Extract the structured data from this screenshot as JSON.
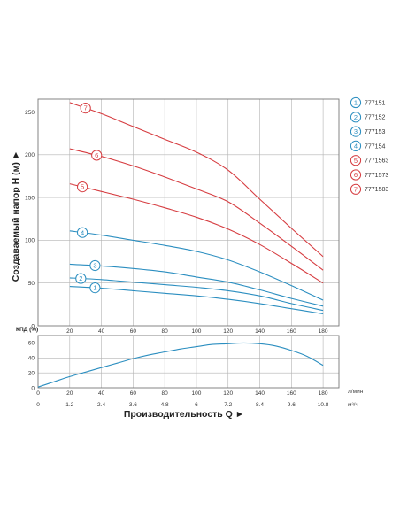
{
  "colors": {
    "red": "#d63c40",
    "teal": "#2b8ec0",
    "grid": "#b3b3b3",
    "frame": "#777777"
  },
  "chart_data": [
    {
      "type": "line",
      "title": "",
      "xlabel": "",
      "ylabel": "Создаваемый напор H (м) ►",
      "xlim": [
        0,
        190
      ],
      "ylim": [
        0,
        265
      ],
      "x_ticks": [
        "0",
        "20",
        "40",
        "60",
        "80",
        "100",
        "120",
        "140",
        "160",
        "180"
      ],
      "x_tick_values": [
        0,
        20,
        40,
        60,
        80,
        100,
        120,
        140,
        160,
        180
      ],
      "y_ticks": [
        "0",
        "50",
        "100",
        "150",
        "200",
        "250"
      ],
      "y_tick_values": [
        0,
        50,
        100,
        150,
        200,
        250
      ],
      "grid": true,
      "legend_position": "right",
      "series": [
        {
          "name": "777151",
          "marker": "1",
          "color": "teal",
          "x": [
            20,
            40,
            60,
            80,
            100,
            120,
            140,
            160,
            180
          ],
          "y": [
            46,
            44,
            41,
            38,
            35,
            31,
            26,
            20,
            14
          ],
          "label_x": 36
        },
        {
          "name": "777152",
          "marker": "2",
          "color": "teal",
          "x": [
            20,
            40,
            60,
            80,
            100,
            120,
            140,
            160,
            180
          ],
          "y": [
            56,
            54,
            51,
            48,
            45,
            41,
            35,
            26,
            18
          ],
          "label_x": 27
        },
        {
          "name": "777153",
          "marker": "3",
          "color": "teal",
          "x": [
            20,
            40,
            60,
            80,
            100,
            120,
            140,
            160,
            180
          ],
          "y": [
            72,
            70,
            67,
            63,
            57,
            51,
            42,
            32,
            23
          ],
          "label_x": 36
        },
        {
          "name": "777154",
          "marker": "4",
          "color": "teal",
          "x": [
            20,
            40,
            60,
            80,
            100,
            120,
            140,
            160,
            180
          ],
          "y": [
            111,
            106,
            100,
            94,
            87,
            77,
            63,
            47,
            30
          ],
          "label_x": 28
        },
        {
          "name": "7771563",
          "marker": "5",
          "color": "red",
          "x": [
            20,
            40,
            60,
            80,
            100,
            120,
            140,
            160,
            180
          ],
          "y": [
            166,
            157,
            148,
            138,
            127,
            113,
            95,
            73,
            50
          ],
          "label_x": 28
        },
        {
          "name": "7771573",
          "marker": "6",
          "color": "red",
          "x": [
            20,
            40,
            60,
            80,
            100,
            120,
            140,
            160,
            180
          ],
          "y": [
            207,
            198,
            187,
            174,
            160,
            145,
            120,
            93,
            65
          ],
          "label_x": 37
        },
        {
          "name": "7771583",
          "marker": "7",
          "color": "red",
          "x": [
            20,
            40,
            60,
            80,
            100,
            120,
            140,
            160,
            180
          ],
          "y": [
            261,
            248,
            233,
            218,
            203,
            182,
            148,
            114,
            81
          ],
          "label_x": 30
        }
      ]
    },
    {
      "type": "line",
      "title": "",
      "xlabel": "Производительность Q ►",
      "ylabel": "КПД (%)",
      "xlim": [
        0,
        190
      ],
      "ylim": [
        0,
        70
      ],
      "x_ticks": [
        "0",
        "20",
        "40",
        "60",
        "80",
        "100",
        "120",
        "140",
        "160",
        "180"
      ],
      "x_tick_values": [
        0,
        20,
        40,
        60,
        80,
        100,
        120,
        140,
        160,
        180
      ],
      "x_unit": "л/мин",
      "x2_ticks": [
        "0",
        "1.2",
        "2.4",
        "3.6",
        "4.8",
        "6",
        "7.2",
        "8.4",
        "9.6",
        "10.8"
      ],
      "x2_unit": "м³/ч",
      "y_ticks": [
        "0",
        "20",
        "40",
        "60"
      ],
      "y_tick_values": [
        0,
        20,
        40,
        60
      ],
      "grid": true,
      "series": [
        {
          "color": "teal",
          "x": [
            0,
            10,
            20,
            30,
            40,
            50,
            60,
            70,
            80,
            90,
            100,
            110,
            120,
            130,
            140,
            150,
            160,
            170,
            180
          ],
          "y": [
            1,
            8,
            15,
            21,
            27,
            33,
            39,
            44,
            48,
            52,
            55,
            58,
            59,
            60,
            59,
            56,
            50,
            42,
            30
          ]
        }
      ]
    }
  ]
}
